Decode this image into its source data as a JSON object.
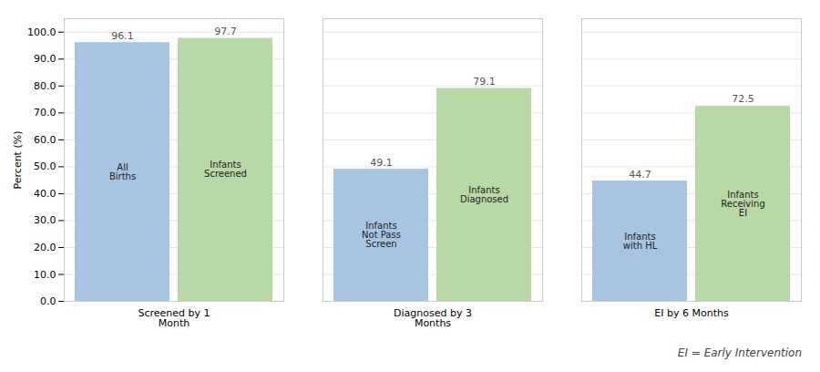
{
  "chart_data": {
    "type": "bar",
    "categories": [
      "Screened by 1\nMonth",
      "Diagnosed by 3\nMonths",
      "EI by 6 Months"
    ],
    "series": [
      {
        "color": "#a8c4e0",
        "values": [
          96.1,
          49.1,
          44.7
        ],
        "bar_labels": [
          "All\nBirths",
          "Infants\nNot Pass\nScreen",
          "Infants\nwith HL"
        ]
      },
      {
        "color": "#b8d8a8",
        "values": [
          97.7,
          79.1,
          72.5
        ],
        "bar_labels": [
          "Infants\nScreened",
          "Infants\nDiagnosed",
          "Infants\nReceiving\nEI"
        ]
      }
    ],
    "ylabel": "Percent (%)",
    "ylim": [
      0,
      105
    ],
    "yticks": [
      {
        "value": 0,
        "label": "0.0"
      },
      {
        "value": 10,
        "label": "10.0"
      },
      {
        "value": 20,
        "label": "20.0"
      },
      {
        "value": 30,
        "label": "30.0"
      },
      {
        "value": 40,
        "label": "40.0"
      },
      {
        "value": 50,
        "label": "50.0"
      },
      {
        "value": 60,
        "label": "60.0"
      },
      {
        "value": 70,
        "label": "70.0"
      },
      {
        "value": 80,
        "label": "80.0"
      },
      {
        "value": 90,
        "label": "90.0"
      },
      {
        "value": 100,
        "label": "100.0"
      }
    ],
    "grid": true,
    "data_labels": true,
    "annotation": "EI = Early Intervention"
  }
}
